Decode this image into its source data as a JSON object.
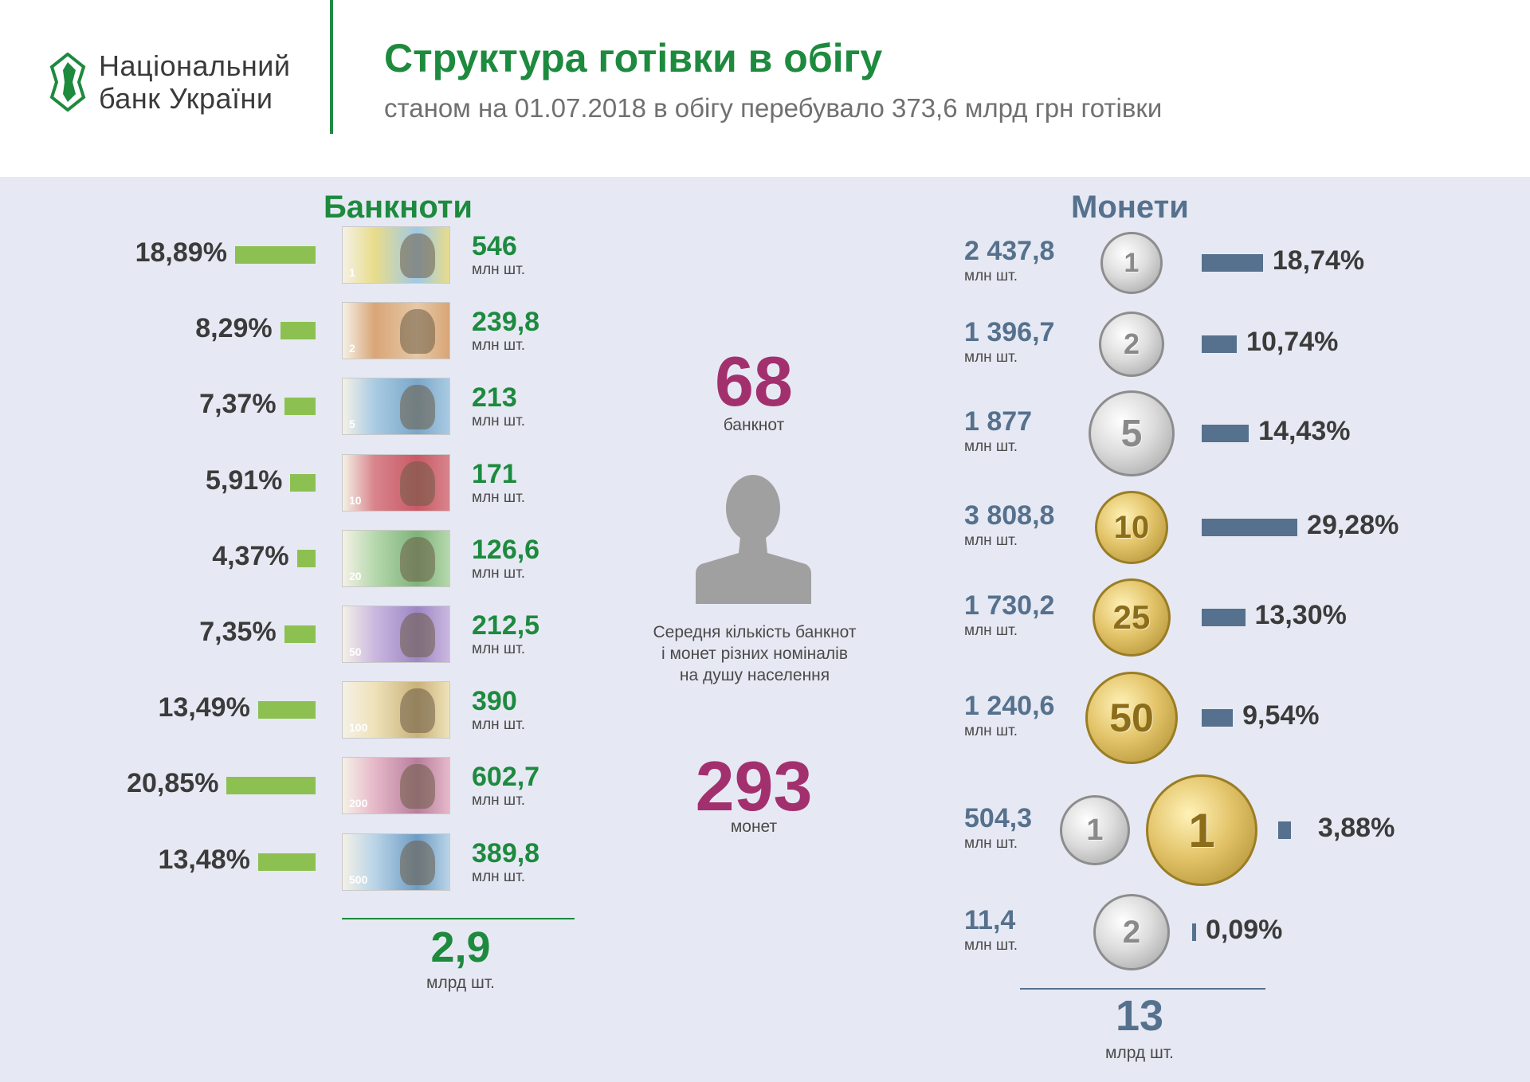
{
  "header": {
    "logo_line1": "Національний",
    "logo_line2": "банк України",
    "title": "Структура готівки в обігу",
    "subtitle": "станом на 01.07.2018 в обігу перебувало 373,6 млрд грн готівки"
  },
  "colors": {
    "green": "#1d8a3e",
    "bar_green": "#8cc152",
    "coin_blue": "#55718d",
    "magenta": "#a3306e",
    "panel": "#e6e9f3"
  },
  "banknotes": {
    "title": "Банкноти",
    "unit": "млн шт.",
    "total_value": "2,9",
    "total_unit": "млрд шт."
  },
  "coins": {
    "title": "Монети",
    "unit": "млн шт.",
    "total_value": "13",
    "total_unit": "млрд шт."
  },
  "center": {
    "banknotes_per_capita": "68",
    "banknotes_label": "банкнот",
    "description_line1": "Середня кількість банкнот",
    "description_line2": "і монет різних номіналів",
    "description_line3": "на душу населення",
    "coins_per_capita": "293",
    "coins_label": "монет"
  },
  "chart_data": [
    {
      "type": "bar",
      "title": "Банкноти",
      "categories": [
        "1",
        "2",
        "5",
        "10",
        "20",
        "50",
        "100",
        "200",
        "500"
      ],
      "series": [
        {
          "values": [
            18.89,
            8.29,
            7.37,
            5.91,
            4.37,
            7.35,
            13.49,
            20.85,
            13.48
          ]
        }
      ],
      "percent_labels": [
        "18,89%",
        "8,29%",
        "7,37%",
        "5,91%",
        "4,37%",
        "7,35%",
        "13,49%",
        "20,85%",
        "13,48%"
      ],
      "count_labels": [
        "546",
        "239,8",
        "213",
        "171",
        "126,6",
        "212,5",
        "390",
        "602,7",
        "389,8"
      ],
      "count_unit": "млн шт."
    },
    {
      "type": "bar",
      "title": "Монети",
      "categories": [
        "1",
        "2",
        "5",
        "10",
        "25",
        "50",
        "1",
        "2"
      ],
      "series": [
        {
          "values": [
            18.74,
            10.74,
            14.43,
            29.28,
            13.3,
            9.54,
            3.88,
            0.09
          ]
        }
      ],
      "percent_labels": [
        "18,74%",
        "10,74%",
        "14,43%",
        "29,28%",
        "13,30%",
        "9,54%",
        "3,88%",
        "0,09%"
      ],
      "count_labels": [
        "2 437,8",
        "1 396,7",
        "1 877",
        "3 808,8",
        "1 730,2",
        "1 240,6",
        "504,3",
        "11,4"
      ],
      "count_unit": "млн шт."
    }
  ]
}
